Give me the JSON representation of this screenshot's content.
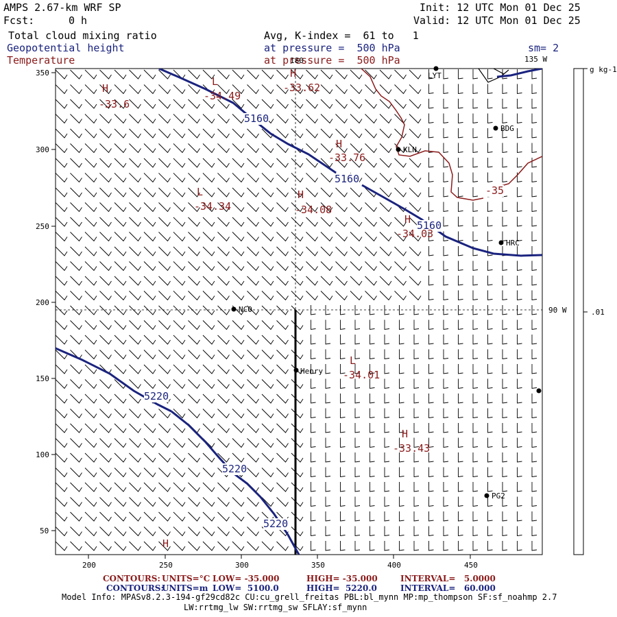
{
  "header": {
    "model": "AMPS 2.67-km WRF SP",
    "init": "Init: 12 UTC Mon 01 Dec 25",
    "fcst_label": "Fcst:",
    "fcst_value": "0 h",
    "valid": "Valid: 12 UTC Mon 01 Dec 25",
    "field1": "Total cloud mixing ratio",
    "field2": "Geopotential height",
    "field3": "Temperature",
    "avg": "Avg, K-index =  61 to   1",
    "pressure1": "at pressure =  500 hPa",
    "pressure2": "at pressure =  500 hPa",
    "sm": "sm= 2"
  },
  "map": {
    "x_ticks": [
      "200",
      "250",
      "300",
      "350",
      "400",
      "450"
    ],
    "y_ticks": [
      "350",
      "300",
      "250",
      "200",
      "150",
      "100",
      "50"
    ],
    "lon_labels": {
      "top": "180",
      "right_top": "135 W",
      "right_mid": "90 W"
    },
    "stations": [
      "LYT",
      "BDG",
      "KLN",
      "HRC",
      "NCO",
      "Henry",
      "PG2"
    ],
    "height_labels": [
      "5160",
      "5160",
      "5160",
      "5220",
      "5220",
      "5220"
    ],
    "temp_extrema": [
      {
        "kind": "H",
        "value": "-33.6"
      },
      {
        "kind": "L",
        "value": "-34.49"
      },
      {
        "kind": "H",
        "value": "-33.62"
      },
      {
        "kind": "H",
        "value": "-33.76"
      },
      {
        "kind": "L",
        "value": "-34.34"
      },
      {
        "kind": "H",
        "value": "-34.08"
      },
      {
        "kind": "H",
        "value": "-34.03"
      },
      {
        "kind": "",
        "value": "-35"
      },
      {
        "kind": "L",
        "value": "-34.01"
      },
      {
        "kind": "H",
        "value": "-33.43"
      },
      {
        "kind": "H",
        "value": ""
      }
    ],
    "colors": {
      "height": "#1a237e",
      "temperature": "#8b1a1a",
      "barbs": "#000000"
    }
  },
  "colorbar": {
    "unit": "g kg-1",
    "mid_value": ".01"
  },
  "footer": {
    "line1_label": "CONTOURS:",
    "line1_units": "UNITS=°C",
    "line1_low": "LOW= -35.000",
    "line1_high": "HIGH= -35.000",
    "line1_int": "INTERVAL=   5.0000",
    "line2_label": "CONTOURS:",
    "line2_units": "UNITS=m",
    "line2_low": "LOW=  5100.0",
    "line2_high": "HIGH=  5220.0",
    "line2_int": "INTERVAL=   60.000",
    "model_info": "Model Info: MPASv8.2.3-194-gf29cd82c CU:cu_grell_freitas PBL:bl_mynn MP:mp_thompson SF:sf_noahmp 2.7",
    "model_info2": "LW:rrtmg_lw SW:rrtmg_sw SFLAY:sf_mynn"
  }
}
